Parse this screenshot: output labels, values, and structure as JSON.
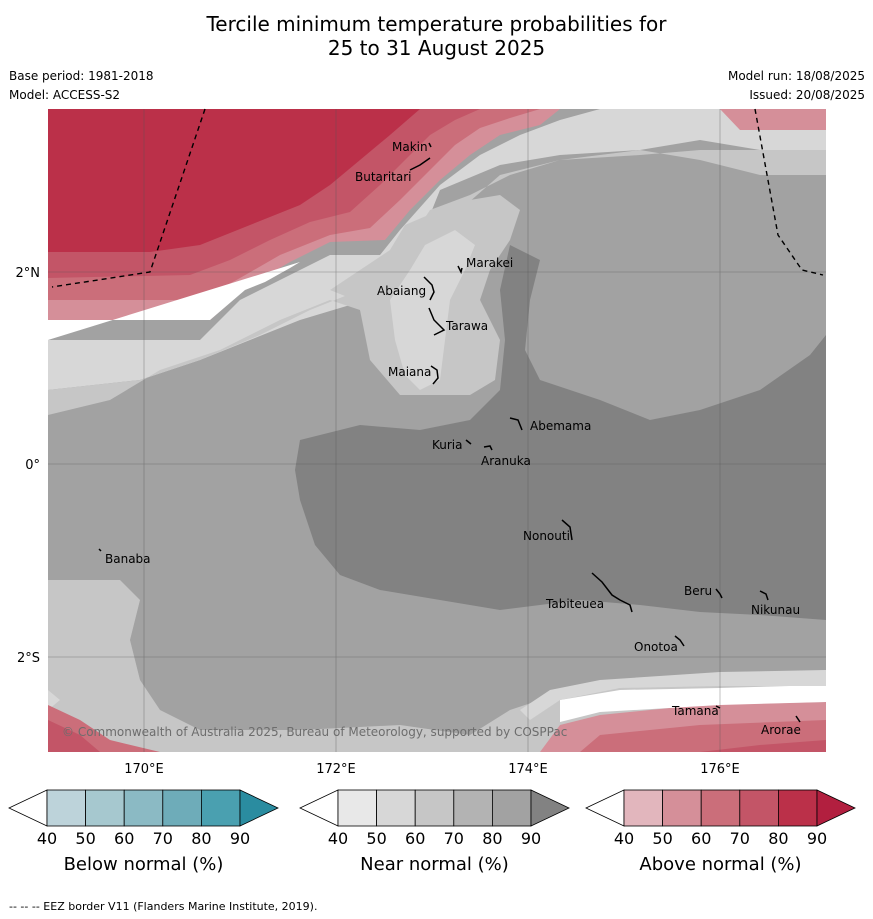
{
  "title_line1": "Tercile minimum temperature probabilities for",
  "title_line2": "25 to 31 August 2025",
  "base_period": "Base period: 1981-2018",
  "model": "Model: ACCESS-S2",
  "model_run": "Model run: 18/08/2025",
  "issued": "Issued: 20/08/2025",
  "axes": {
    "lon_labels": [
      "170°E",
      "172°E",
      "174°E",
      "176°E"
    ],
    "lat_labels": [
      "2°N",
      "0°",
      "2°S"
    ]
  },
  "places": [
    "Makin",
    "Butaritari",
    "Marakei",
    "Abaiang",
    "Tarawa",
    "Maiana",
    "Abemama",
    "Kuria",
    "Aranuka",
    "Nonouti",
    "Banaba",
    "Beru",
    "Tabiteuea",
    "Nikunau",
    "Onotoa",
    "Tamana",
    "Arorae"
  ],
  "copyright": "© Commonwealth of Australia 2025, Bureau of Meteorology, supported by COSPPac",
  "colorbars": [
    {
      "label": "Below normal (%)",
      "ticks": [
        "40",
        "50",
        "60",
        "70",
        "80",
        "90"
      ],
      "colors": [
        "#ffffff",
        "#bdd3da",
        "#a6c8cf",
        "#8bbac4",
        "#6eacb9",
        "#4aa0b0",
        "#2a8ca0"
      ]
    },
    {
      "label": "Near normal (%)",
      "ticks": [
        "40",
        "50",
        "60",
        "70",
        "80",
        "90"
      ],
      "colors": [
        "#ffffff",
        "#e8e8e8",
        "#d7d7d7",
        "#c6c6c6",
        "#b3b3b3",
        "#a2a2a2",
        "#828282"
      ]
    },
    {
      "label": "Above normal (%)",
      "ticks": [
        "40",
        "50",
        "60",
        "70",
        "80",
        "90"
      ],
      "colors": [
        "#ffffff",
        "#e2b6bd",
        "#d58f99",
        "#cb6e7a",
        "#c35567",
        "#bb3049",
        "#b21f3f"
      ]
    }
  ],
  "footer": "--  --  -- EEZ border V11 (Flanders Marine Institute, 2019)."
}
